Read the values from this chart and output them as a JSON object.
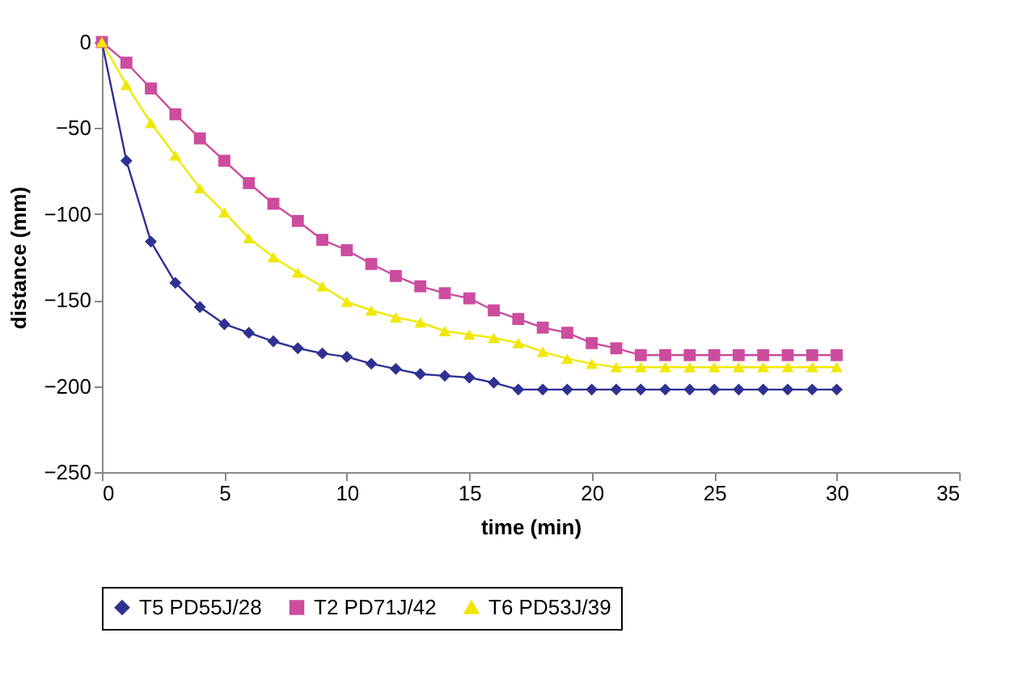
{
  "chart_data": {
    "type": "line",
    "xlabel": "time (min)",
    "ylabel": "distance (mm)",
    "x": [
      0,
      1,
      2,
      3,
      4,
      5,
      6,
      7,
      8,
      9,
      10,
      11,
      12,
      13,
      14,
      15,
      16,
      17,
      18,
      19,
      20,
      21,
      22,
      23,
      24,
      25,
      26,
      27,
      28,
      29,
      30
    ],
    "series": [
      {
        "name": "T5 PD55J/28",
        "color": "#2e3192",
        "marker": "diamond",
        "values": [
          0,
          -69,
          -116,
          -140,
          -154,
          -164,
          -169,
          -174,
          -178,
          -181,
          -183,
          -187,
          -190,
          -193,
          -194,
          -195,
          -198,
          -202,
          -202,
          -202,
          -202,
          -202,
          -202,
          -202,
          -202,
          -202,
          -202,
          -202,
          -202,
          -202,
          -202
        ]
      },
      {
        "name": "T2 PD71J/42",
        "color": "#cc4c9e",
        "marker": "square",
        "values": [
          0,
          -12,
          -27,
          -42,
          -56,
          -69,
          -82,
          -94,
          -104,
          -115,
          -121,
          -129,
          -136,
          -142,
          -146,
          -149,
          -156,
          -161,
          -166,
          -169,
          -175,
          -178,
          -182,
          -182,
          -182,
          -182,
          -182,
          -182,
          -182,
          -182,
          -182
        ]
      },
      {
        "name": "T6 PD53J/39",
        "color": "#f0e800",
        "marker": "triangle",
        "values": [
          0,
          -25,
          -47,
          -66,
          -85,
          -99,
          -114,
          -125,
          -134,
          -142,
          -151,
          -156,
          -160,
          -163,
          -168,
          -170,
          -172,
          -175,
          -180,
          -184,
          -187,
          -189,
          -189,
          -189,
          -189,
          -189,
          -189,
          -189,
          -189,
          -189,
          -189
        ]
      }
    ],
    "xlim": [
      0,
      35
    ],
    "xticks": [
      0,
      5,
      10,
      15,
      20,
      25,
      30,
      35
    ],
    "ylim": [
      -250,
      0
    ],
    "yticks": [
      -250,
      -200,
      -150,
      -100,
      -50,
      0
    ],
    "grid": false,
    "legend": "bottom",
    "line_style": "solid"
  }
}
